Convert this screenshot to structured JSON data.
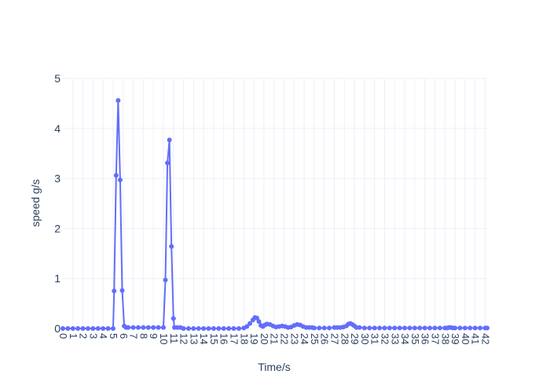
{
  "chart_data": {
    "type": "line",
    "title": "",
    "xlabel": "Time/s",
    "ylabel": "speed g/s",
    "xlim": [
      0,
      42.2
    ],
    "ylim": [
      0,
      5
    ],
    "x_ticks": [
      0,
      1,
      2,
      3,
      4,
      5,
      6,
      7,
      8,
      9,
      10,
      11,
      12,
      13,
      14,
      15,
      16,
      17,
      18,
      19,
      20,
      21,
      22,
      23,
      24,
      25,
      26,
      27,
      28,
      29,
      30,
      31,
      32,
      33,
      34,
      35,
      36,
      37,
      38,
      39,
      40,
      41,
      42
    ],
    "y_ticks": [
      0,
      1,
      2,
      3,
      4,
      5
    ],
    "grid": true,
    "legend": "none",
    "series": [
      {
        "color": "#636efa",
        "markers": true,
        "x": [
          0,
          0.5,
          1,
          1.5,
          2,
          2.5,
          3,
          3.5,
          4,
          4.5,
          5,
          5.1,
          5.3,
          5.5,
          5.7,
          5.9,
          6.1,
          6.3,
          6.5,
          7,
          7.5,
          8,
          8.5,
          9,
          9.5,
          10,
          10.2,
          10.4,
          10.6,
          10.8,
          11,
          11.1,
          11.4,
          11.7,
          12,
          12.5,
          13,
          13.5,
          14,
          14.5,
          15,
          15.5,
          16,
          16.5,
          17,
          17.5,
          18,
          18.3,
          18.6,
          18.9,
          19.1,
          19.3,
          19.5,
          19.7,
          19.9,
          20.1,
          20.3,
          20.6,
          20.9,
          21.2,
          21.5,
          21.8,
          22.1,
          22.4,
          22.7,
          23,
          23.3,
          23.6,
          23.9,
          24.2,
          24.5,
          24.8,
          25,
          25.5,
          26,
          26.5,
          27,
          27.3,
          27.6,
          27.9,
          28.2,
          28.4,
          28.6,
          28.8,
          29,
          29.2,
          29.5,
          30,
          30.5,
          31,
          31.5,
          32,
          32.5,
          33,
          33.5,
          34,
          34.5,
          35,
          35.5,
          36,
          36.5,
          37,
          37.5,
          38,
          38.2,
          38.4,
          38.6,
          38.8,
          39,
          39.5,
          40,
          40.5,
          41,
          41.5,
          42,
          42.2
        ],
        "y": [
          0,
          0,
          0,
          0,
          0,
          0,
          0,
          0,
          0,
          0,
          0,
          0.75,
          3.06,
          4.56,
          2.97,
          0.76,
          0.05,
          0.02,
          0.02,
          0.02,
          0.02,
          0.02,
          0.02,
          0.02,
          0.02,
          0.02,
          0.97,
          3.31,
          3.77,
          1.64,
          0.2,
          0.02,
          0.02,
          0.02,
          0,
          0,
          0,
          0,
          0,
          0,
          0,
          0,
          0,
          0,
          0,
          0,
          0.01,
          0.04,
          0.1,
          0.17,
          0.22,
          0.21,
          0.14,
          0.06,
          0.04,
          0.07,
          0.09,
          0.08,
          0.05,
          0.03,
          0.04,
          0.05,
          0.04,
          0.02,
          0.03,
          0.06,
          0.08,
          0.07,
          0.04,
          0.02,
          0.02,
          0.02,
          0.01,
          0.01,
          0.01,
          0.01,
          0.02,
          0.02,
          0.02,
          0.03,
          0.05,
          0.09,
          0.1,
          0.08,
          0.05,
          0.02,
          0.02,
          0.01,
          0.01,
          0.01,
          0.01,
          0.01,
          0.01,
          0.01,
          0.01,
          0.01,
          0.01,
          0.01,
          0.01,
          0.01,
          0.01,
          0.01,
          0.01,
          0.01,
          0.01,
          0.02,
          0.02,
          0.01,
          0.01,
          0.01,
          0.01,
          0.01,
          0.01,
          0.01,
          0.01,
          0.01
        ]
      }
    ]
  }
}
